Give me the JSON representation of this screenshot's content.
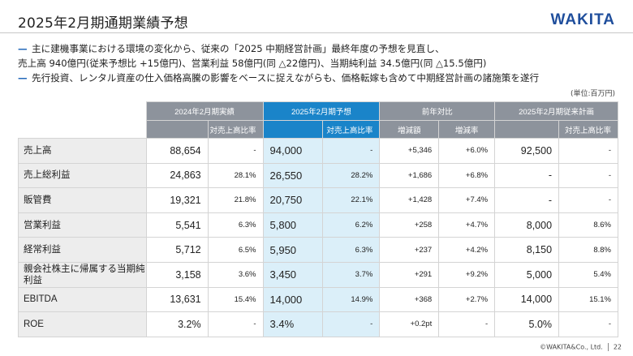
{
  "header": {
    "title": "2025年2月期通期業績予想",
    "logo": "WAKITA"
  },
  "bullets": [
    {
      "lines": [
        "主に建機事業における環境の変化から、従来の「2025 中期経営計画」最終年度の予想を見直し、",
        "売上高 940億円(従来予想比 +15億円)、営業利益 58億円(同 △22億円)、当期純利益 34.5億円(同 △15.5億円)"
      ]
    },
    {
      "lines": [
        "先行投資、レンタル資産の仕入価格高騰の影響をベースに捉えながらも、価格転嫁も含めて中期経営計画の諸施策を遂行"
      ]
    }
  ],
  "unit": "(単位:百万円)",
  "table": {
    "group_headers": {
      "fy2024": "2024年2月期実績",
      "fy2025": "2025年2月期予想",
      "yoy": "前年対比",
      "plan": "2025年2月期従来計画"
    },
    "sub_headers": {
      "ratio": "対売上高比率",
      "change": "増減額",
      "rate": "増減率"
    },
    "rows": [
      {
        "label": "売上高",
        "v24": "88,654",
        "r24": "-",
        "v25": "94,000",
        "r25": "-",
        "chg": "+5,346",
        "rate": "+6.0%",
        "plan": "92,500",
        "rplan": "-"
      },
      {
        "label": "売上総利益",
        "v24": "24,863",
        "r24": "28.1%",
        "v25": "26,550",
        "r25": "28.2%",
        "chg": "+1,686",
        "rate": "+6.8%",
        "plan": "-",
        "rplan": "-"
      },
      {
        "label": "販管費",
        "v24": "19,321",
        "r24": "21.8%",
        "v25": "20,750",
        "r25": "22.1%",
        "chg": "+1,428",
        "rate": "+7.4%",
        "plan": "-",
        "rplan": "-"
      },
      {
        "label": "営業利益",
        "v24": "5,541",
        "r24": "6.3%",
        "v25": "5,800",
        "r25": "6.2%",
        "chg": "+258",
        "rate": "+4.7%",
        "plan": "8,000",
        "rplan": "8.6%"
      },
      {
        "label": "経常利益",
        "v24": "5,712",
        "r24": "6.5%",
        "v25": "5,950",
        "r25": "6.3%",
        "chg": "+237",
        "rate": "+4.2%",
        "plan": "8,150",
        "rplan": "8.8%"
      },
      {
        "label": "親会社株主に帰属する当期純利益",
        "v24": "3,158",
        "r24": "3.6%",
        "v25": "3,450",
        "r25": "3.7%",
        "chg": "+291",
        "rate": "+9.2%",
        "plan": "5,000",
        "rplan": "5.4%"
      },
      {
        "label": "EBITDA",
        "v24": "13,631",
        "r24": "15.4%",
        "v25": "14,000",
        "r25": "14.9%",
        "chg": "+368",
        "rate": "+2.7%",
        "plan": "14,000",
        "rplan": "15.1%"
      },
      {
        "label": "ROE",
        "v24": "3.2%",
        "r24": "-",
        "v25": "3.4%",
        "r25": "-",
        "chg": "+0.2pt",
        "rate": "-",
        "plan": "5.0%",
        "rplan": "-"
      }
    ]
  },
  "footer": {
    "copyright": "©WAKITA&Co., Ltd.",
    "page": "22"
  },
  "colors": {
    "accent": "#1a84c9",
    "header_gray": "#8d939c",
    "highlight": "#dbeff9",
    "brand": "#1f4e9c"
  }
}
